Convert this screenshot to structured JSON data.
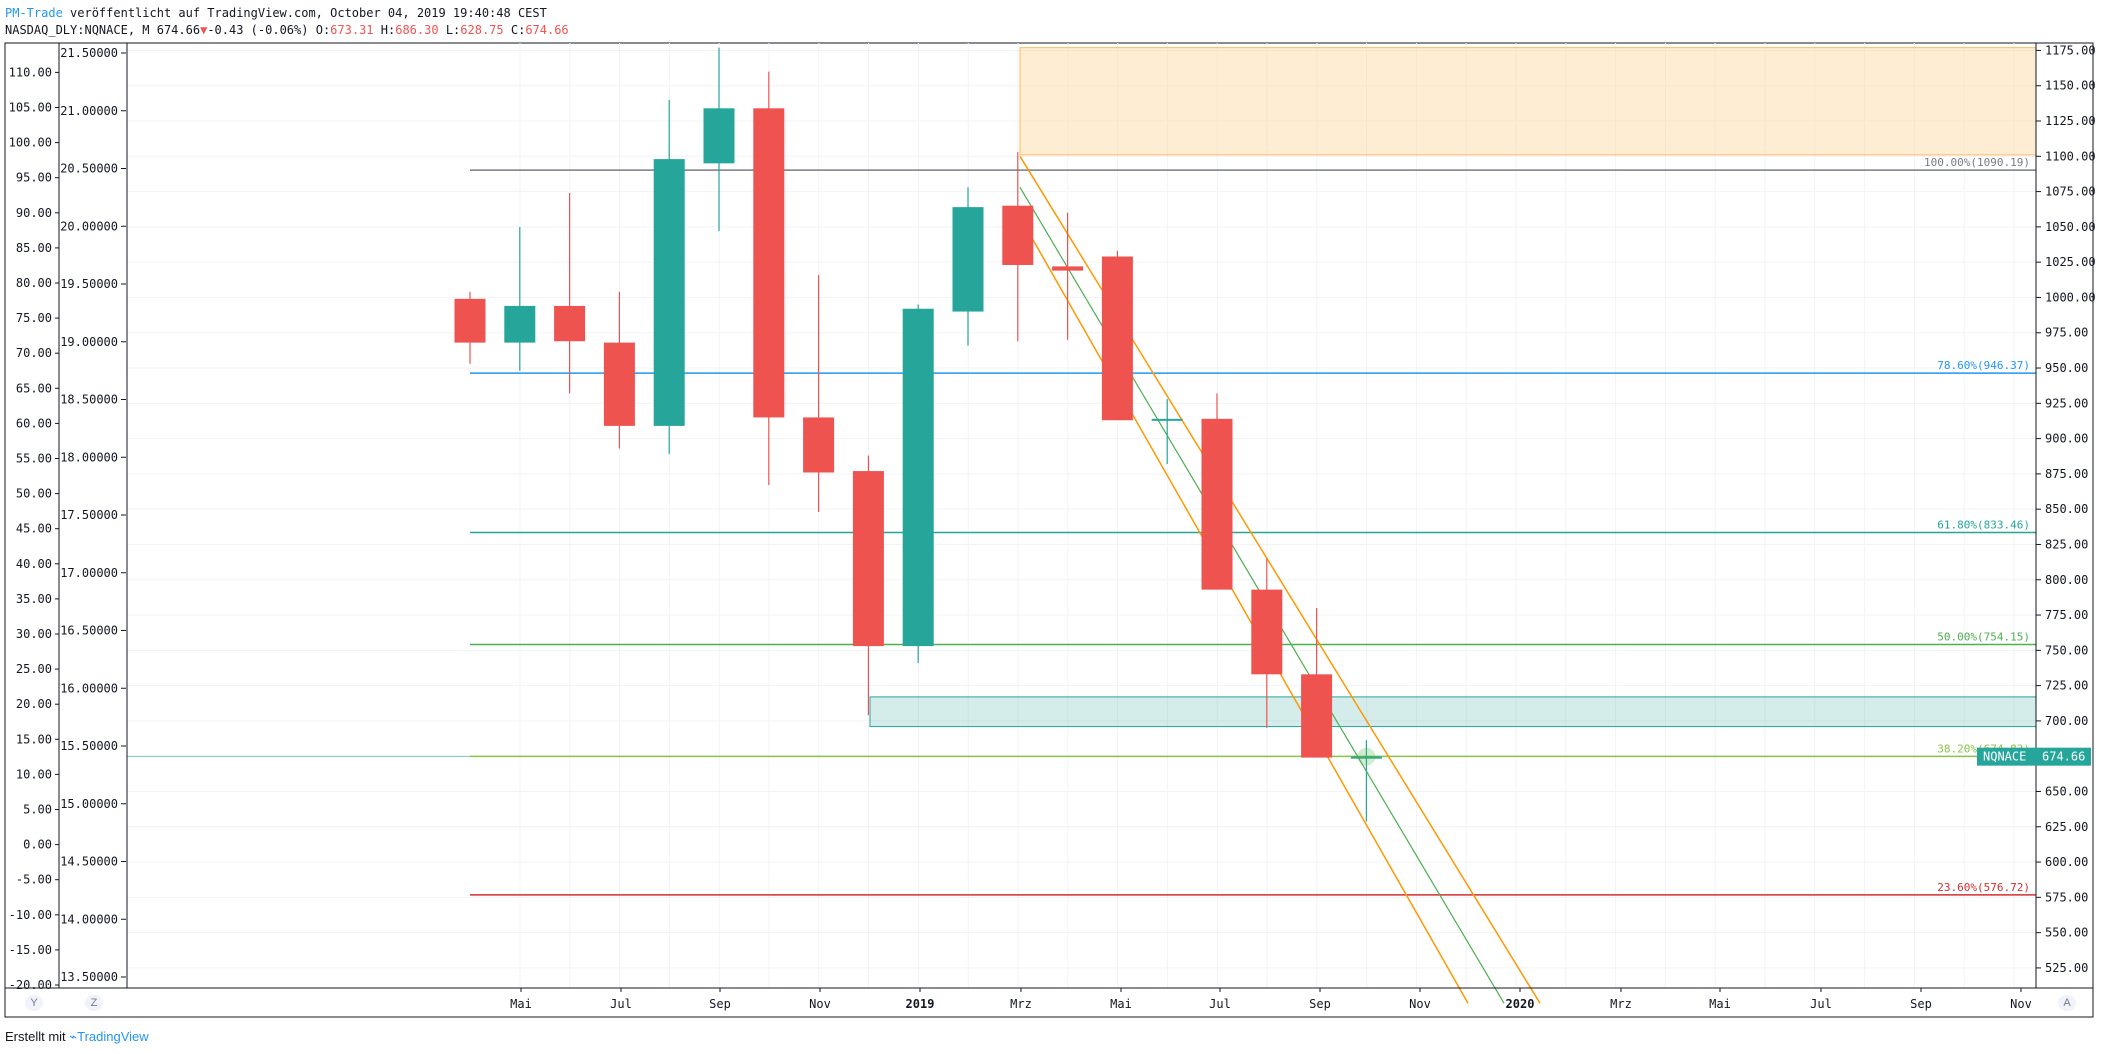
{
  "header": {
    "author": "PM-Trade",
    "published": "veröffentlicht auf TradingView.com, October 04, 2019 19:40:48 CEST",
    "symbol": "NASDAQ_DLY:NQNACE, M",
    "last": "674.66",
    "arrow": "▼",
    "change": "-0.43 (-0.06%)",
    "o_label": "O:",
    "o_val": "673.31",
    "h_label": "H:",
    "h_val": "686.30",
    "l_label": "L:",
    "l_val": "628.75",
    "c_label": "C:",
    "c_val": "674.66"
  },
  "footer": {
    "created": "Erstellt mit",
    "brand": "TradingView"
  },
  "buttons": {
    "left_a": "Y",
    "left_b": "Z",
    "right_auto": "A"
  },
  "chart_data": {
    "type": "candlestick",
    "title": "",
    "price_axis_right": {
      "labels": [
        "1175.00",
        "1150.00",
        "1125.00",
        "1100.00",
        "1075.00",
        "1050.00",
        "1025.00",
        "1000.00",
        "975.00",
        "950.00",
        "925.00",
        "900.00",
        "875.00",
        "850.00",
        "825.00",
        "800.00",
        "775.00",
        "750.00",
        "725.00",
        "700.00",
        "675.00",
        "650.00",
        "625.00",
        "600.00",
        "575.00",
        "550.00",
        "525.00"
      ],
      "range": [
        514,
        1177
      ]
    },
    "left_axis_1": {
      "labels": [
        "110.00",
        "105.00",
        "100.00",
        "95.00",
        "90.00",
        "85.00",
        "80.00",
        "75.00",
        "70.00",
        "65.00",
        "60.00",
        "55.00",
        "50.00",
        "45.00",
        "40.00",
        "35.00",
        "30.00",
        "25.00",
        "20.00",
        "15.00",
        "10.00",
        "5.00",
        "0.00",
        "-5.00",
        "-10.00",
        "-15.00",
        "-20.00"
      ],
      "range": [
        -20,
        110
      ]
    },
    "left_axis_2": {
      "labels": [
        "21.50000",
        "21.00000",
        "20.50000",
        "20.00000",
        "19.50000",
        "19.00000",
        "18.50000",
        "18.00000",
        "17.50000",
        "17.00000",
        "16.50000",
        "16.00000",
        "15.50000",
        "15.00000",
        "14.50000",
        "14.00000",
        "13.50000"
      ],
      "range": [
        13.5,
        21.5
      ]
    },
    "time_axis": [
      "Mai",
      "Jul",
      "Sep",
      "Nov",
      "2019",
      "Mrz",
      "Mai",
      "Jul",
      "Sep",
      "Nov",
      "2020",
      "Mrz",
      "Mai",
      "Jul",
      "Sep",
      "Nov"
    ],
    "candles": [
      {
        "period": "2018-03",
        "o": 999,
        "h": 1004,
        "l": 953,
        "c": 968
      },
      {
        "period": "2018-04",
        "o": 968,
        "h": 1050,
        "l": 948,
        "c": 994
      },
      {
        "period": "2018-05",
        "o": 994,
        "h": 1074,
        "l": 932,
        "c": 969
      },
      {
        "period": "2018-06",
        "o": 968,
        "h": 1004,
        "l": 893,
        "c": 909
      },
      {
        "period": "2018-07",
        "o": 909,
        "h": 1140,
        "l": 889,
        "c": 1098
      },
      {
        "period": "2018-08",
        "o": 1095,
        "h": 1177,
        "l": 1047,
        "c": 1134
      },
      {
        "period": "2018-09",
        "o": 1134,
        "h": 1160,
        "l": 867,
        "c": 915
      },
      {
        "period": "2018-10",
        "o": 915,
        "h": 1016,
        "l": 848,
        "c": 876
      },
      {
        "period": "2018-11",
        "o": 877,
        "h": 888,
        "l": 704,
        "c": 753
      },
      {
        "period": "2018-12",
        "o": 753,
        "h": 995,
        "l": 741,
        "c": 992
      },
      {
        "period": "2019-01",
        "o": 990,
        "h": 1078,
        "l": 966,
        "c": 1064
      },
      {
        "period": "2019-02",
        "o": 1065,
        "h": 1103,
        "l": 969,
        "c": 1023
      },
      {
        "period": "2019-03",
        "o": 1022,
        "h": 1060,
        "l": 970,
        "c": 1019
      },
      {
        "period": "2019-04",
        "o": 1029,
        "h": 1033,
        "l": 916,
        "c": 913
      },
      {
        "period": "2019-05",
        "o": 913,
        "h": 928,
        "l": 882,
        "c": 914
      },
      {
        "period": "2019-06",
        "o": 914,
        "h": 932,
        "l": 794,
        "c": 793
      },
      {
        "period": "2019-07",
        "o": 793,
        "h": 815,
        "l": 695,
        "c": 733
      },
      {
        "period": "2019-08",
        "o": 733,
        "h": 780,
        "l": 675,
        "c": 674
      },
      {
        "period": "2019-09",
        "o": 673.31,
        "h": 686.3,
        "l": 628.75,
        "c": 674.66
      }
    ],
    "fib_levels": [
      {
        "label": "100.00%(1090.19)",
        "value": 1090.19,
        "color": "#787b86"
      },
      {
        "label": "78.60%(946.37)",
        "value": 946.37,
        "color": "#2196f3"
      },
      {
        "label": "61.80%(833.46)",
        "value": 833.46,
        "color": "#26a69a"
      },
      {
        "label": "50.00%(754.15)",
        "value": 754.15,
        "color": "#4caf50"
      },
      {
        "label": "38.20%(674.83)",
        "value": 674.83,
        "color": "#8bc34a"
      },
      {
        "label": "23.60%(576.72)",
        "value": 576.72,
        "color": "#d32f2f"
      }
    ],
    "zones": [
      {
        "name": "resistance",
        "from": 1101,
        "to": 1177,
        "color": "#ffcc80"
      },
      {
        "name": "support",
        "from": 696,
        "to": 717,
        "color": "#26a69a"
      }
    ],
    "last_price_tag": {
      "symbol": "NQNACE",
      "value": "674.66",
      "color": "#26a69a"
    },
    "colors": {
      "up": "#26a69a",
      "down": "#ef5350",
      "grid": "#f0f3fa",
      "channel": "#ff9800",
      "mid": "#4caf50"
    }
  }
}
